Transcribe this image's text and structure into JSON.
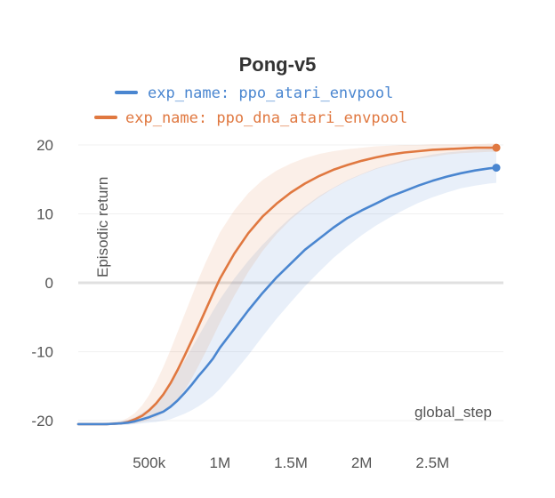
{
  "chart_data": {
    "type": "line",
    "title": "Pong-v5",
    "xlabel": "global_step",
    "ylabel": "Episodic return",
    "xlim": [
      0,
      3000000
    ],
    "ylim": [
      -21,
      21
    ],
    "x_ticks": [
      500000,
      1000000,
      1500000,
      2000000,
      2500000
    ],
    "x_tick_labels": [
      "500k",
      "1M",
      "1.5M",
      "2M",
      "2.5M"
    ],
    "y_ticks": [
      20,
      10,
      0,
      -10,
      -20
    ],
    "y_tick_labels": [
      "20",
      "10",
      "0",
      "-10",
      "-20"
    ],
    "grid": "horizontal",
    "legend_position": "top",
    "x": [
      0,
      100000,
      200000,
      300000,
      350000,
      400000,
      450000,
      500000,
      550000,
      600000,
      650000,
      700000,
      750000,
      800000,
      850000,
      900000,
      950000,
      1000000,
      1100000,
      1200000,
      1300000,
      1400000,
      1500000,
      1600000,
      1700000,
      1800000,
      1900000,
      2000000,
      2100000,
      2200000,
      2300000,
      2400000,
      2500000,
      2600000,
      2700000,
      2800000,
      2900000,
      2950000
    ],
    "series": [
      {
        "name": "exp_name: ppo_atari_envpool",
        "color": "#4a86d0",
        "values": [
          -20.5,
          -20.5,
          -20.5,
          -20.4,
          -20.3,
          -20.1,
          -19.8,
          -19.5,
          -19.1,
          -18.7,
          -18.0,
          -17.1,
          -16.0,
          -14.8,
          -13.5,
          -12.3,
          -11.0,
          -9.4,
          -6.7,
          -4.0,
          -1.5,
          0.8,
          2.8,
          4.8,
          6.4,
          8.0,
          9.4,
          10.5,
          11.5,
          12.5,
          13.3,
          14.1,
          14.8,
          15.4,
          15.9,
          16.3,
          16.6,
          16.7
        ],
        "band_low": [
          -20.6,
          -20.6,
          -20.6,
          -20.6,
          -20.6,
          -20.5,
          -20.4,
          -20.3,
          -20.2,
          -20.0,
          -19.8,
          -19.4,
          -19.0,
          -18.5,
          -17.9,
          -17.2,
          -16.4,
          -15.4,
          -13.0,
          -10.5,
          -7.8,
          -5.2,
          -2.8,
          -0.5,
          1.6,
          3.6,
          5.3,
          6.9,
          8.3,
          9.5,
          10.6,
          11.6,
          12.4,
          13.1,
          13.7,
          14.1,
          14.4,
          14.5
        ],
        "band_high": [
          -20.4,
          -20.4,
          -20.3,
          -20.1,
          -19.9,
          -19.5,
          -18.9,
          -18.2,
          -17.3,
          -16.2,
          -14.8,
          -13.1,
          -11.3,
          -9.5,
          -7.7,
          -5.9,
          -4.1,
          -2.4,
          0.6,
          3.2,
          5.5,
          7.6,
          9.5,
          11.1,
          12.6,
          13.8,
          14.9,
          15.8,
          16.6,
          17.2,
          17.8,
          18.2,
          18.6,
          18.9,
          19.1,
          19.3,
          19.4,
          19.4
        ]
      },
      {
        "name": "exp_name: ppo_dna_atari_envpool",
        "color": "#e07840",
        "values": [
          -20.5,
          -20.5,
          -20.5,
          -20.4,
          -20.2,
          -19.8,
          -19.3,
          -18.5,
          -17.5,
          -16.2,
          -14.6,
          -12.7,
          -10.6,
          -8.4,
          -6.2,
          -3.9,
          -1.6,
          0.6,
          4.2,
          7.2,
          9.6,
          11.5,
          13.1,
          14.4,
          15.5,
          16.4,
          17.1,
          17.7,
          18.2,
          18.6,
          18.9,
          19.1,
          19.3,
          19.4,
          19.5,
          19.6,
          19.6,
          19.6
        ],
        "band_low": [
          -20.6,
          -20.6,
          -20.6,
          -20.6,
          -20.5,
          -20.4,
          -20.2,
          -19.9,
          -19.5,
          -18.9,
          -18.1,
          -17.0,
          -15.6,
          -13.9,
          -12.0,
          -10.0,
          -7.9,
          -5.8,
          -1.9,
          1.6,
          4.6,
          7.1,
          9.2,
          10.9,
          12.4,
          13.7,
          14.8,
          15.7,
          16.5,
          17.1,
          17.6,
          18.0,
          18.3,
          18.6,
          18.8,
          18.9,
          19.0,
          19.0
        ],
        "band_high": [
          -20.4,
          -20.4,
          -20.3,
          -20.1,
          -19.6,
          -18.9,
          -17.8,
          -16.3,
          -14.4,
          -12.2,
          -9.8,
          -7.2,
          -4.6,
          -2.0,
          0.6,
          3.0,
          5.2,
          7.3,
          10.5,
          13.0,
          14.9,
          16.3,
          17.3,
          18.1,
          18.7,
          19.1,
          19.4,
          19.6,
          19.8,
          19.9,
          20.0,
          20.0,
          20.1,
          20.1,
          20.1,
          20.1,
          20.2,
          20.2
        ]
      }
    ]
  }
}
